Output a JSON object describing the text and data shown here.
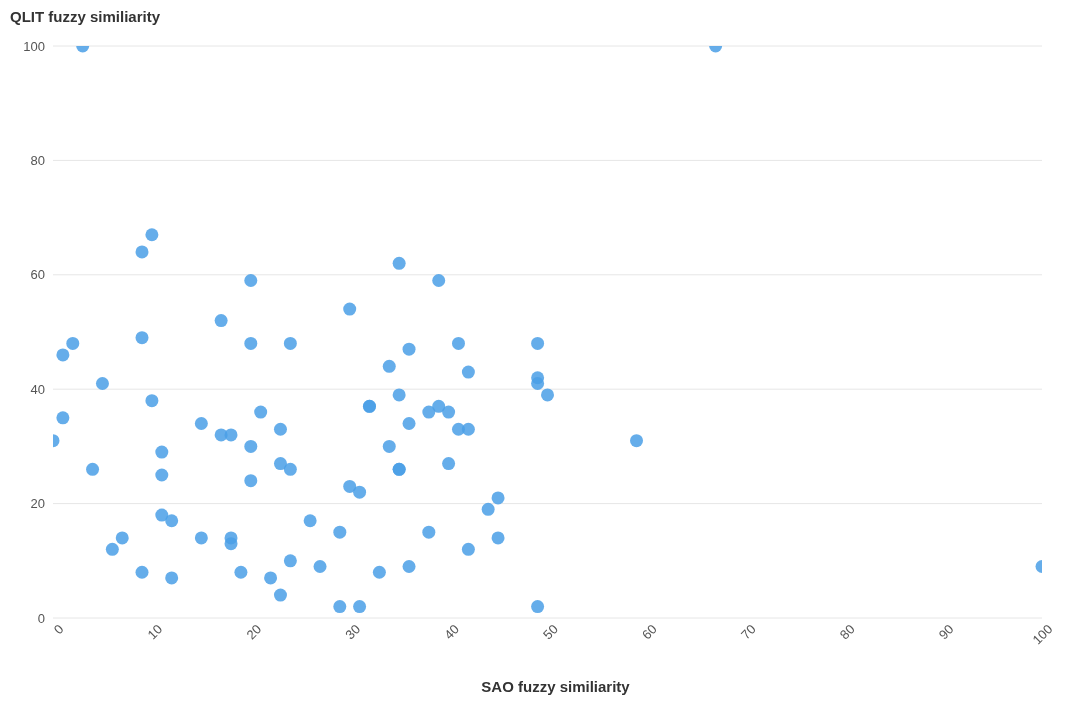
{
  "chart_data": {
    "type": "scatter",
    "xlabel": "SAO fuzzy similiarity",
    "ylabel": "QLIT fuzzy similiarity",
    "x": [
      3,
      67,
      10,
      9,
      35,
      20,
      39,
      30,
      17,
      9,
      2,
      1,
      20,
      24,
      41,
      49,
      36,
      34,
      42,
      5,
      49,
      49,
      50,
      35,
      10,
      32,
      32,
      39,
      38,
      40,
      21,
      1,
      15,
      36,
      23,
      41,
      42,
      17,
      18,
      0,
      59,
      20,
      34,
      11,
      23,
      40,
      4,
      24,
      35,
      35,
      11,
      20,
      30,
      31,
      45,
      44,
      11,
      12,
      26,
      29,
      38,
      7,
      15,
      18,
      45,
      18,
      6,
      42,
      24,
      27,
      36,
      100,
      9,
      19,
      33,
      12,
      22,
      23,
      29,
      31,
      49
    ],
    "series": [
      {
        "color": "#4a9fe6",
        "values": [
          100,
          100,
          67,
          64,
          62,
          59,
          59,
          54,
          52,
          49,
          48,
          46,
          48,
          48,
          48,
          48,
          47,
          44,
          43,
          41,
          42,
          41,
          39,
          39,
          38,
          37,
          37,
          37,
          36,
          36,
          36,
          35,
          34,
          34,
          33,
          33,
          33,
          32,
          32,
          31,
          31,
          30,
          30,
          29,
          27,
          27,
          26,
          26,
          26,
          26,
          25,
          24,
          23,
          22,
          21,
          19,
          18,
          17,
          17,
          15,
          15,
          14,
          14,
          14,
          14,
          13,
          12,
          12,
          10,
          9,
          9,
          9,
          8,
          8,
          8,
          7,
          7,
          4,
          2,
          2,
          2
        ]
      }
    ],
    "xlim": [
      0,
      100
    ],
    "xticks": [
      0,
      10,
      20,
      30,
      40,
      50,
      60,
      70,
      80,
      90,
      100
    ],
    "ylim": [
      0,
      100
    ],
    "yticks": [
      0,
      20,
      40,
      60,
      80,
      100
    ],
    "grid": "y",
    "marker": "circle"
  }
}
